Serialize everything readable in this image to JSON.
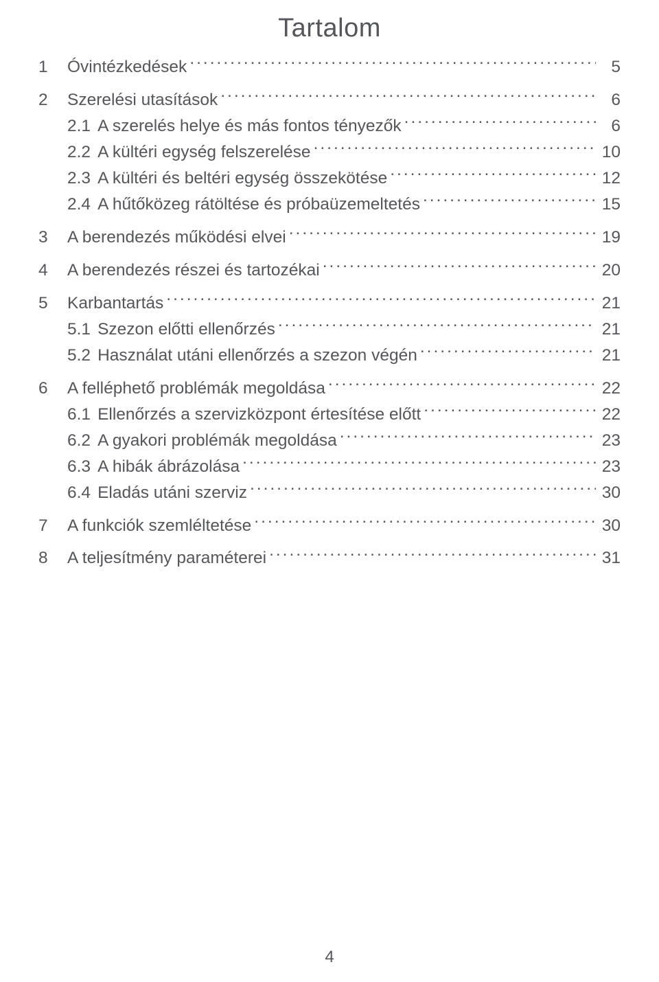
{
  "title": "Tartalom",
  "page_number": "4",
  "text_color": "#55565a",
  "background_color": "#ffffff",
  "title_fontsize": 38,
  "body_fontsize": 24.5,
  "toc": [
    {
      "type": "top",
      "num": "1",
      "label": "Óvintézkedések",
      "page": "5"
    },
    {
      "type": "top",
      "num": "2",
      "label": "Szerelési utasítások",
      "page": "6",
      "gap": true
    },
    {
      "type": "sub",
      "num": "2.1",
      "label": "A szerelés helye és más fontos tényezők",
      "page": "6"
    },
    {
      "type": "sub",
      "num": "2.2",
      "label": "A kültéri egység felszerelése",
      "page": "10"
    },
    {
      "type": "sub",
      "num": "2.3",
      "label": "A kültéri és beltéri egység összekötése",
      "page": "12"
    },
    {
      "type": "sub",
      "num": "2.4",
      "label": "A hűtőközeg rátöltése és próbaüzemeltetés",
      "page": "15"
    },
    {
      "type": "top",
      "num": "3",
      "label": "A berendezés működési elvei",
      "page": "19",
      "gap": true
    },
    {
      "type": "top",
      "num": "4",
      "label": "A berendezés részei és tartozékai",
      "page": "20",
      "gap": true
    },
    {
      "type": "top",
      "num": "5",
      "label": "Karbantartás",
      "page": "21",
      "gap": true
    },
    {
      "type": "sub",
      "num": "5.1",
      "label": "Szezon előtti ellenőrzés",
      "page": "21"
    },
    {
      "type": "sub",
      "num": "5.2",
      "label": "Használat utáni ellenőrzés a szezon végén",
      "page": "21"
    },
    {
      "type": "top",
      "num": "6",
      "label": "A felléphető problémák megoldása",
      "page": "22",
      "gap": true
    },
    {
      "type": "sub",
      "num": "6.1",
      "label": "Ellenőrzés a szervizközpont értesítése előtt",
      "page": "22"
    },
    {
      "type": "sub",
      "num": "6.2",
      "label": "A gyakori problémák megoldása",
      "page": "23"
    },
    {
      "type": "sub",
      "num": "6.3",
      "label": "A hibák ábrázolása",
      "page": "23"
    },
    {
      "type": "sub",
      "num": "6.4",
      "label": "Eladás utáni szerviz",
      "page": "30"
    },
    {
      "type": "top",
      "num": "7",
      "label": "A funkciók szemléltetése",
      "page": "30",
      "gap": true
    },
    {
      "type": "top",
      "num": "8",
      "label": "A teljesítmény paraméterei",
      "page": "31",
      "gap": true
    }
  ]
}
